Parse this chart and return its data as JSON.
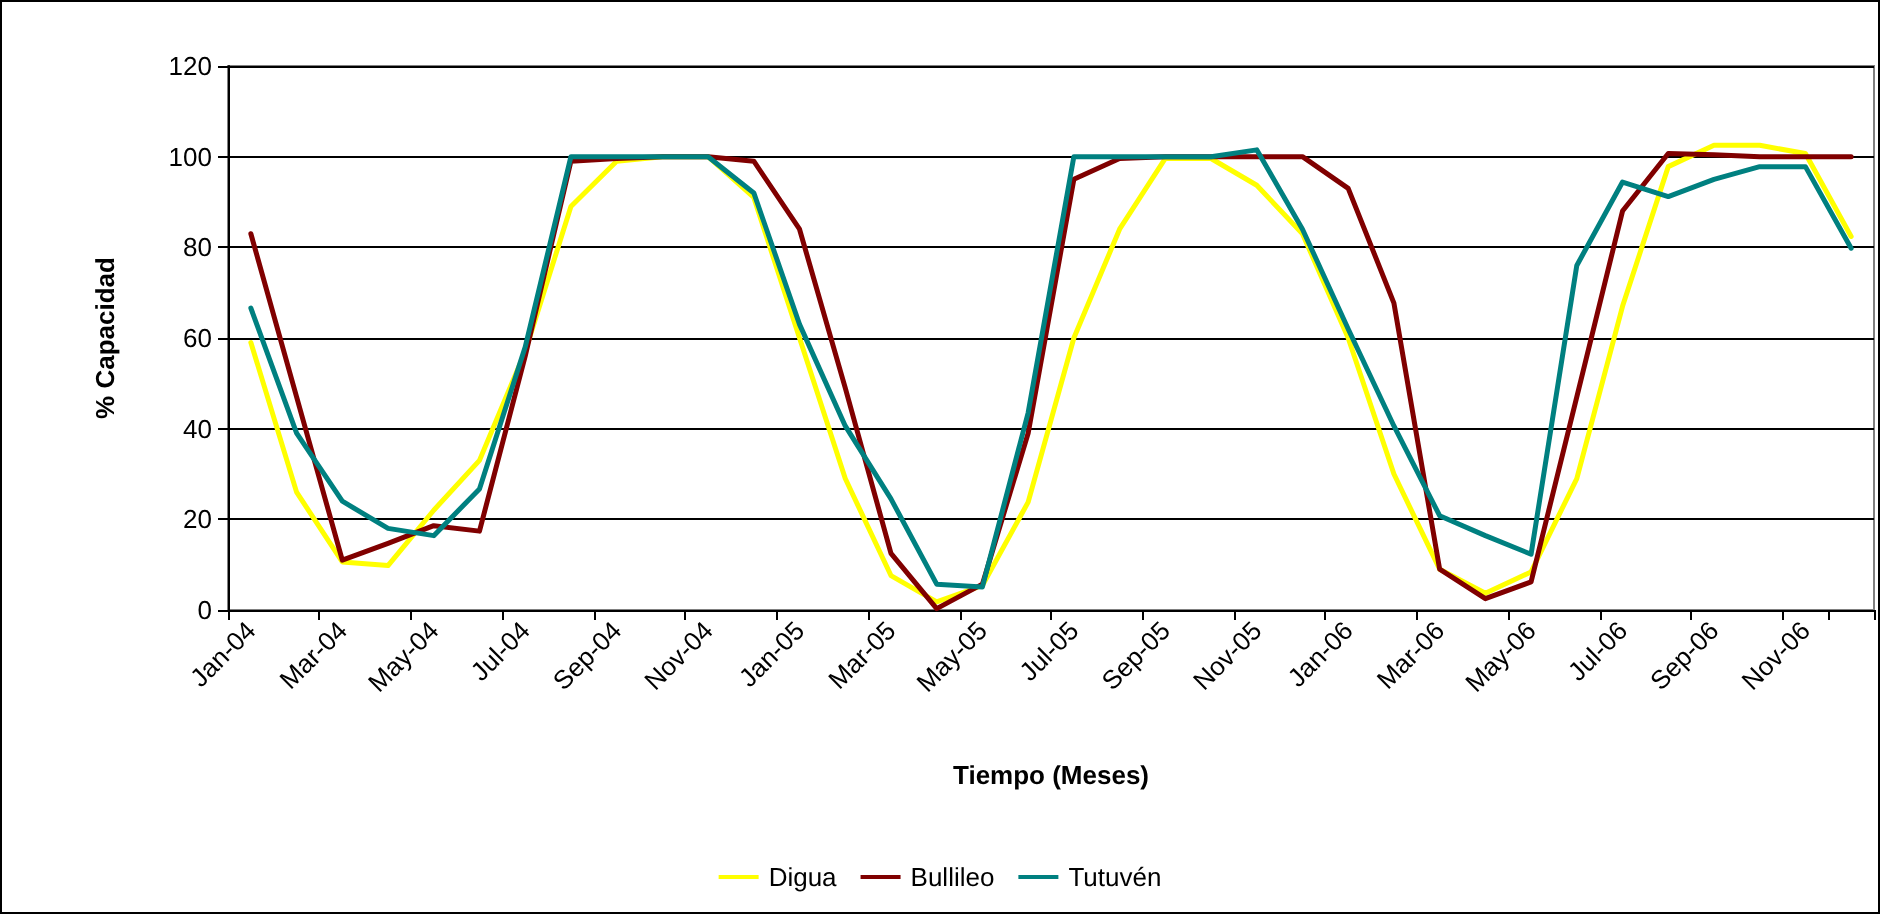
{
  "chart_data": {
    "type": "line",
    "xlabel": "Tiempo (Meses)",
    "ylabel": "% Capacidad",
    "categories": [
      "Jan-04",
      null,
      "Mar-04",
      null,
      "May-04",
      null,
      "Jul-04",
      null,
      "Sep-04",
      null,
      "Nov-04",
      null,
      "Jan-05",
      null,
      "Mar-05",
      null,
      "May-05",
      null,
      "Jul-05",
      null,
      "Sep-05",
      null,
      "Nov-05",
      null,
      "Jan-06",
      null,
      "Mar-06",
      null,
      "May-06",
      null,
      "Jul-06",
      null,
      "Sep-06",
      null,
      "Nov-06",
      null
    ],
    "series": [
      {
        "name": "Digua",
        "color": "#ffff00",
        "values": [
          59,
          26,
          10.6,
          9.8,
          22,
          33,
          57,
          89,
          99,
          100,
          100,
          91,
          60,
          29,
          7.6,
          1.8,
          5.4,
          23.8,
          60,
          84,
          99.6,
          99.6,
          93.7,
          83,
          60,
          30,
          9,
          3.7,
          8.4,
          29,
          67,
          97.8,
          102.5,
          102.5,
          100.7,
          82.4
        ]
      },
      {
        "name": "Bullileo",
        "color": "#800000",
        "values": [
          83,
          47,
          11,
          14.7,
          18.6,
          17.4,
          56,
          99,
          99.6,
          100,
          100,
          99,
          84,
          49,
          12.5,
          0.3,
          5.7,
          39,
          95,
          99.6,
          100,
          100,
          100,
          100,
          93,
          67.7,
          9,
          2.5,
          6.2,
          47,
          88,
          100.7,
          100.4,
          100,
          100,
          100
        ]
      },
      {
        "name": "Tutuvén",
        "color": "#008080",
        "values": [
          66.6,
          39,
          24,
          18,
          16.4,
          26.7,
          58,
          100,
          100,
          100,
          100,
          92,
          63,
          40.6,
          24.5,
          5.7,
          5.1,
          43.5,
          100,
          100,
          100,
          100,
          101.5,
          84,
          62,
          40.6,
          20.8,
          16.4,
          12.3,
          76,
          94.4,
          91.2,
          95,
          97.8,
          97.8,
          79.8
        ]
      }
    ],
    "ylim": [
      0,
      120
    ],
    "yticks": [
      0,
      20,
      40,
      60,
      80,
      100,
      120
    ],
    "grid": "y",
    "legend": "bottom",
    "marker": "none",
    "line_style": "solid"
  }
}
